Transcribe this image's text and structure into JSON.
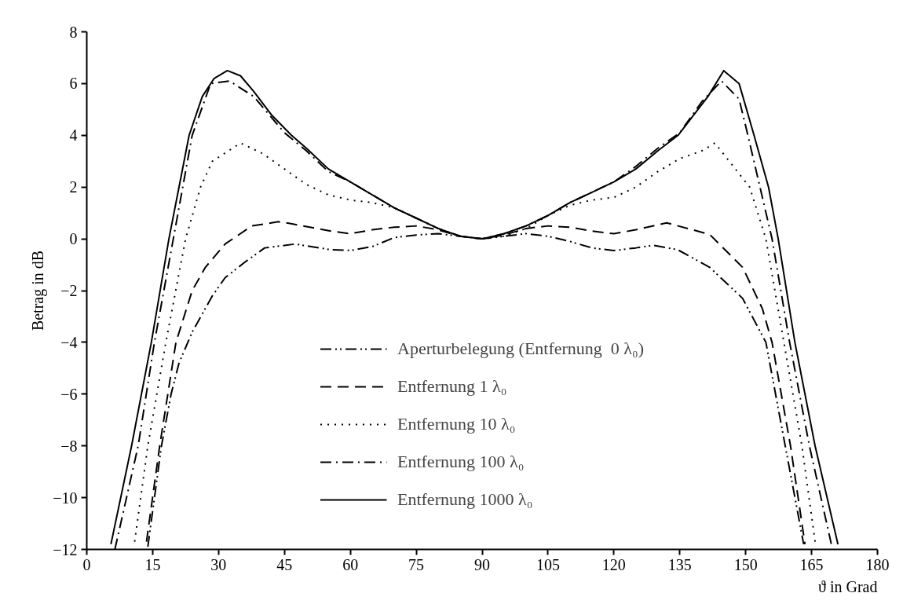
{
  "chart_data": {
    "type": "line",
    "xlabel": "ϑ in Grad",
    "ylabel": "Betrag in dB",
    "xlim": [
      0,
      180
    ],
    "ylim": [
      -12,
      8
    ],
    "xticks": [
      0,
      15,
      30,
      45,
      60,
      75,
      90,
      105,
      120,
      135,
      150,
      165,
      180
    ],
    "yticks": [
      {
        "value": -12,
        "label": "−12"
      },
      {
        "value": -10,
        "label": "−10"
      },
      {
        "value": -8,
        "label": "−8"
      },
      {
        "value": -6,
        "label": "−6"
      },
      {
        "value": -4,
        "label": "−4"
      },
      {
        "value": -2,
        "label": "−2"
      },
      0,
      2,
      4,
      6,
      8
    ],
    "grid": false,
    "legend": "bottom",
    "marker": "none",
    "series": [
      {
        "name": "Aperturbelegung (Entfernung  0 λ₀)",
        "color": "#000000",
        "line_style": "dashdotdot",
        "x": [
          13.9,
          17,
          19.2,
          21,
          24,
          28.6,
          31.5,
          36,
          40.5,
          47.4,
          55.6,
          60,
          65,
          70,
          75,
          80,
          85,
          90,
          95,
          100,
          105,
          110,
          115,
          120,
          125,
          129,
          134.5,
          141.8,
          149.3,
          154.6,
          159,
          163.2
        ],
        "values": [
          -11.9,
          -8,
          -6,
          -4.8,
          -3.6,
          -2.2,
          -1.5,
          -0.9,
          -0.35,
          -0.2,
          -0.42,
          -0.45,
          -0.3,
          0.05,
          0.15,
          0.2,
          0.1,
          0,
          0.1,
          0.2,
          0.1,
          -0.1,
          -0.35,
          -0.45,
          -0.35,
          -0.25,
          -0.42,
          -1.1,
          -2.3,
          -4,
          -8,
          -11.8
        ]
      },
      {
        "name": "Entfernung 1 λ₀",
        "color": "#000000",
        "line_style": "dashed",
        "x": [
          13.6,
          16.6,
          20.3,
          24,
          27,
          31.5,
          37.6,
          43.6,
          46,
          55.6,
          60,
          65,
          70,
          75,
          80,
          85,
          90,
          95,
          100,
          105,
          110,
          115,
          120,
          125,
          132,
          141.8,
          149.3,
          153.8,
          156,
          160.2,
          163.5
        ],
        "values": [
          -11.7,
          -8,
          -4,
          -2,
          -1.1,
          -0.2,
          0.5,
          0.66,
          0.6,
          0.3,
          0.2,
          0.35,
          0.45,
          0.5,
          0.35,
          0.1,
          0,
          0.15,
          0.4,
          0.5,
          0.45,
          0.3,
          0.2,
          0.35,
          0.62,
          0.17,
          -1.1,
          -2.7,
          -4,
          -8,
          -11.8
        ]
      },
      {
        "name": "Entfernung 10 λ₀",
        "color": "#000000",
        "line_style": "dotted",
        "x": [
          10.9,
          13.9,
          18,
          22.5,
          25.9,
          28.6,
          35,
          40,
          45,
          50,
          55,
          60,
          65,
          70,
          75,
          80,
          85,
          90,
          95,
          100,
          105,
          110,
          115,
          120,
          125,
          130,
          135,
          140,
          143,
          150.9,
          154.6,
          158.7,
          162.8,
          165.8
        ],
        "values": [
          -11.7,
          -8,
          -4,
          0,
          2,
          3,
          3.7,
          3.3,
          2.7,
          2.1,
          1.7,
          1.5,
          1.4,
          1.2,
          0.8,
          0.4,
          0.1,
          0,
          0.1,
          0.4,
          0.9,
          1.3,
          1.5,
          1.6,
          2,
          2.6,
          3.1,
          3.4,
          3.7,
          2,
          0,
          -4,
          -8,
          -11.7
        ]
      },
      {
        "name": "Entfernung 100 λ₀",
        "color": "#000000",
        "line_style": "dashdot",
        "x": [
          6.4,
          11.7,
          15.4,
          19.7,
          24,
          28.2,
          32.5,
          38,
          45,
          50,
          55,
          60,
          65,
          70,
          75,
          80,
          85,
          90,
          95,
          100,
          105,
          110,
          115,
          120,
          125,
          130,
          135,
          140,
          144.5,
          148.5,
          150.5,
          156,
          160,
          164.5,
          169.5
        ],
        "values": [
          -12,
          -8,
          -4,
          0,
          4,
          6,
          6.1,
          5.5,
          4.1,
          3.4,
          2.6,
          2.2,
          1.7,
          1.2,
          0.8,
          0.4,
          0.1,
          0,
          0.2,
          0.5,
          0.9,
          1.4,
          1.8,
          2.2,
          2.8,
          3.5,
          4.1,
          5.3,
          6.1,
          5.4,
          4,
          0,
          -4,
          -8,
          -11.8
        ]
      },
      {
        "name": "Entfernung 1000 λ₀",
        "color": "#000000",
        "line_style": "solid",
        "x": [
          5.5,
          10.2,
          14.7,
          18.7,
          21,
          23.3,
          26.3,
          29,
          32,
          35,
          38,
          42,
          46.6,
          50,
          55,
          60,
          65,
          70,
          75,
          80,
          85,
          90,
          95,
          100,
          105,
          110,
          115,
          120,
          125,
          130,
          134.6,
          141.4,
          145,
          148.5,
          151.9,
          155.2,
          157.4,
          161.2,
          165.8,
          171
        ],
        "values": [
          -11.8,
          -8,
          -4,
          0,
          2,
          4,
          5.5,
          6.2,
          6.5,
          6.3,
          5.7,
          4.8,
          4,
          3.5,
          2.7,
          2.2,
          1.7,
          1.2,
          0.8,
          0.4,
          0.1,
          0,
          0.2,
          0.5,
          0.9,
          1.4,
          1.8,
          2.2,
          2.7,
          3.4,
          4,
          5.5,
          6.5,
          6,
          4,
          2,
          0,
          -4,
          -8,
          -11.8
        ]
      }
    ]
  }
}
